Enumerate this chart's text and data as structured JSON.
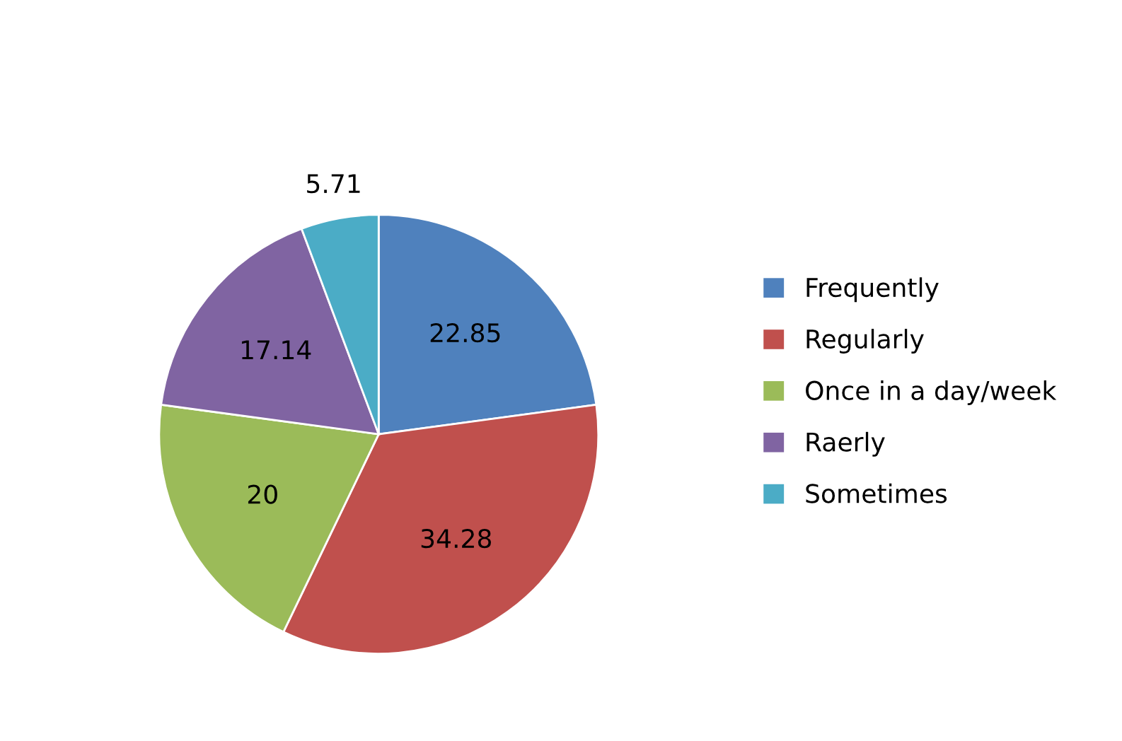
{
  "chart_data": {
    "type": "pie",
    "categories": [
      "Frequently",
      "Regularly",
      "Once in a day/week",
      "Raerly",
      "Sometimes"
    ],
    "values": [
      22.85,
      34.28,
      20,
      17.14,
      5.71
    ],
    "colors": [
      "#4f81bd",
      "#c0504d",
      "#9bbb59",
      "#8064a2",
      "#4bacc6"
    ],
    "data_labels": true,
    "legend": "right"
  }
}
